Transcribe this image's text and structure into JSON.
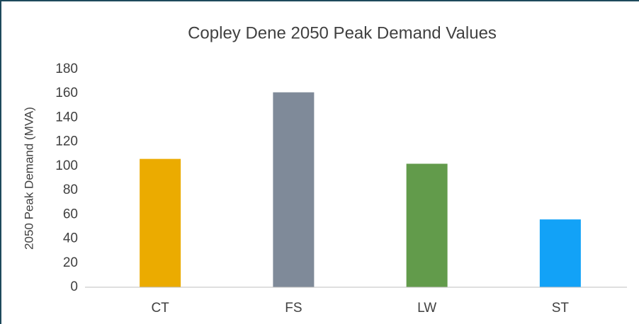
{
  "chart_data": {
    "type": "bar",
    "title": "Copley Dene 2050 Peak Demand Values",
    "y_label": "2050 Peak Demand (MVA)",
    "categories": [
      "CT",
      "FS",
      "LW",
      "ST"
    ],
    "values": [
      106,
      161,
      102,
      56
    ],
    "colors": [
      "#ebab00",
      "#7f8a99",
      "#629b4b",
      "#12a2f7"
    ],
    "ylim": [
      0,
      180
    ],
    "yticks": [
      0,
      20,
      40,
      60,
      80,
      100,
      120,
      140,
      160,
      180
    ],
    "grid": false
  }
}
